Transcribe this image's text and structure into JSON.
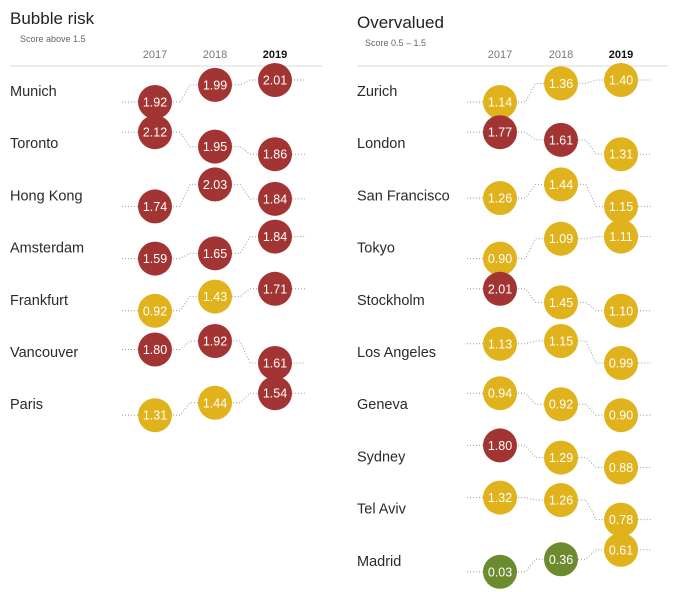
{
  "colors": {
    "bubble_risk": "#a23533",
    "overvalued": "#e0b21c",
    "fair_valued": "#6c8a2e"
  },
  "chart_data": [
    {
      "type": "table",
      "title": "Bubble risk",
      "subtitle": "Score above 1.5",
      "years": [
        "2017",
        "2018",
        "2019"
      ],
      "highlight_year": "2019",
      "rows": [
        {
          "city": "Munich",
          "values": [
            1.92,
            1.99,
            2.01
          ],
          "labels": [
            "1.92",
            "1.99",
            "2.01"
          ]
        },
        {
          "city": "Toronto",
          "values": [
            2.12,
            1.95,
            1.86
          ],
          "labels": [
            "2.12",
            "1.95",
            "1.86"
          ]
        },
        {
          "city": "Hong Kong",
          "values": [
            1.74,
            2.03,
            1.84
          ],
          "labels": [
            "1.74",
            "2.03",
            "1.84"
          ]
        },
        {
          "city": "Amsterdam",
          "values": [
            1.59,
            1.65,
            1.84
          ],
          "labels": [
            "1.59",
            "1.65",
            "1.84"
          ]
        },
        {
          "city": "Frankfurt",
          "values": [
            0.92,
            1.43,
            1.71
          ],
          "labels": [
            "0.92",
            "1.43",
            "1.71"
          ]
        },
        {
          "city": "Vancouver",
          "values": [
            1.8,
            1.92,
            1.61
          ],
          "labels": [
            "1.80",
            "1.92",
            "1.61"
          ]
        },
        {
          "city": "Paris",
          "values": [
            1.31,
            1.44,
            1.54
          ],
          "labels": [
            "1.31",
            "1.44",
            "1.54"
          ]
        }
      ]
    },
    {
      "type": "table",
      "title": "Overvalued",
      "subtitle": "Score 0.5 – 1.5",
      "years": [
        "2017",
        "2018",
        "2019"
      ],
      "highlight_year": "2019",
      "rows": [
        {
          "city": "Zurich",
          "values": [
            1.14,
            1.36,
            1.4
          ],
          "labels": [
            "1.14",
            "1.36",
            "1.40"
          ]
        },
        {
          "city": "London",
          "values": [
            1.77,
            1.61,
            1.31
          ],
          "labels": [
            "1.77",
            "1.61",
            "1.31"
          ]
        },
        {
          "city": "San Francisco",
          "values": [
            1.26,
            1.44,
            1.15
          ],
          "labels": [
            "1.26",
            "1.44",
            "1.15"
          ]
        },
        {
          "city": "Tokyo",
          "values": [
            0.9,
            1.09,
            1.11
          ],
          "labels": [
            "0.90",
            "1.09",
            "1.11"
          ]
        },
        {
          "city": "Stockholm",
          "values": [
            2.01,
            1.45,
            1.1
          ],
          "labels": [
            "2.01",
            "1.45",
            "1.10"
          ]
        },
        {
          "city": "Los Angeles",
          "values": [
            1.13,
            1.15,
            0.99
          ],
          "labels": [
            "1.13",
            "1.15",
            "0.99"
          ]
        },
        {
          "city": "Geneva",
          "values": [
            0.94,
            0.92,
            0.9
          ],
          "labels": [
            "0.94",
            "0.92",
            "0.90"
          ]
        },
        {
          "city": "Sydney",
          "values": [
            1.8,
            1.29,
            0.88
          ],
          "labels": [
            "1.80",
            "1.29",
            "0.88"
          ]
        },
        {
          "city": "Tel Aviv",
          "values": [
            1.32,
            1.26,
            0.78
          ],
          "labels": [
            "1.32",
            "1.26",
            "0.78"
          ]
        },
        {
          "city": "Madrid",
          "values": [
            0.03,
            0.36,
            0.61
          ],
          "labels": [
            "0.03",
            "0.36",
            "0.61"
          ]
        }
      ]
    }
  ]
}
